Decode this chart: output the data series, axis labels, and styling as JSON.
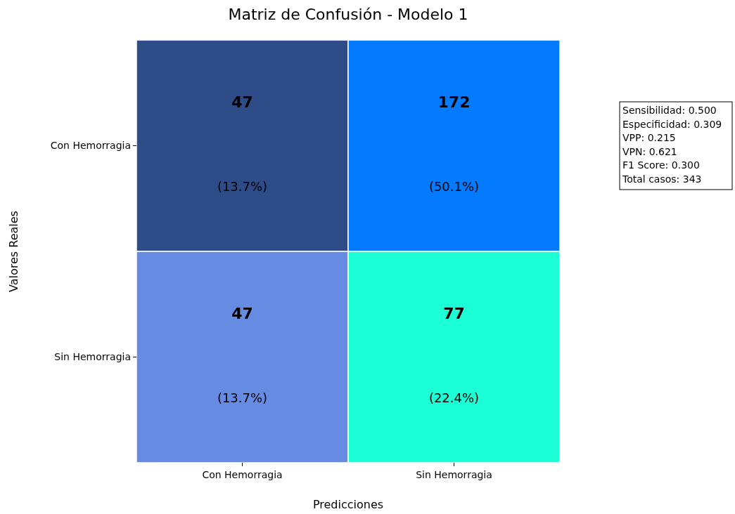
{
  "chart_data": {
    "type": "heatmap",
    "title": "Matriz de Confusión - Modelo 1",
    "xlabel": "Predicciones",
    "ylabel": "Valores Reales",
    "categories": [
      "Con Hemorragia",
      "Sin Hemorragia"
    ],
    "y_categories": [
      "Con Hemorragia",
      "Sin Hemorragia"
    ],
    "cells": [
      [
        47,
        172
      ],
      [
        47,
        77
      ]
    ],
    "data_labels": true,
    "colors": [
      [
        "#2e4c87",
        "#047bff"
      ],
      [
        "#658be3",
        "#1cffd6"
      ]
    ],
    "annotations": [
      "(13.7%)",
      "(50.1%)",
      "(13.7%)",
      "(22.4%)",
      "Sensibilidad: 0.500",
      "Especificidad: 0.309",
      "VPP: 0.215",
      "VPN: 0.621",
      "F1 Score: 0.300",
      "Total casos: 343"
    ]
  }
}
